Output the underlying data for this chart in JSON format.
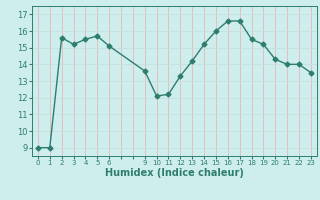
{
  "x": [
    0,
    1,
    2,
    3,
    4,
    5,
    6,
    9,
    10,
    11,
    12,
    13,
    14,
    15,
    16,
    17,
    18,
    19,
    20,
    21,
    22,
    23
  ],
  "y": [
    9.0,
    9.0,
    15.6,
    15.2,
    15.5,
    15.7,
    15.1,
    13.6,
    12.1,
    12.2,
    13.3,
    14.2,
    15.2,
    16.0,
    16.6,
    16.6,
    15.5,
    15.2,
    14.3,
    14.0,
    14.0,
    13.5
  ],
  "xlabel": "Humidex (Indice chaleur)",
  "ylim": [
    8.5,
    17.5
  ],
  "xlim": [
    -0.5,
    23.5
  ],
  "yticks": [
    9,
    10,
    11,
    12,
    13,
    14,
    15,
    16,
    17
  ],
  "xticks_all": [
    0,
    1,
    2,
    3,
    4,
    5,
    6,
    7,
    8,
    9,
    10,
    11,
    12,
    13,
    14,
    15,
    16,
    17,
    18,
    19,
    20,
    21,
    22,
    23
  ],
  "xtick_labels": [
    "0",
    "1",
    "2",
    "3",
    "4",
    "5",
    "6",
    "",
    "",
    "9",
    "10",
    "11",
    "12",
    "13",
    "14",
    "15",
    "16",
    "17",
    "18",
    "19",
    "20",
    "21",
    "22",
    "23"
  ],
  "line_color": "#2e7d6e",
  "bg_color": "#ceeeed",
  "vgrid_color": "#e8b8b8",
  "hgrid_color": "#c8dedd",
  "marker": "D",
  "marker_size": 2.5,
  "linewidth": 1.0
}
